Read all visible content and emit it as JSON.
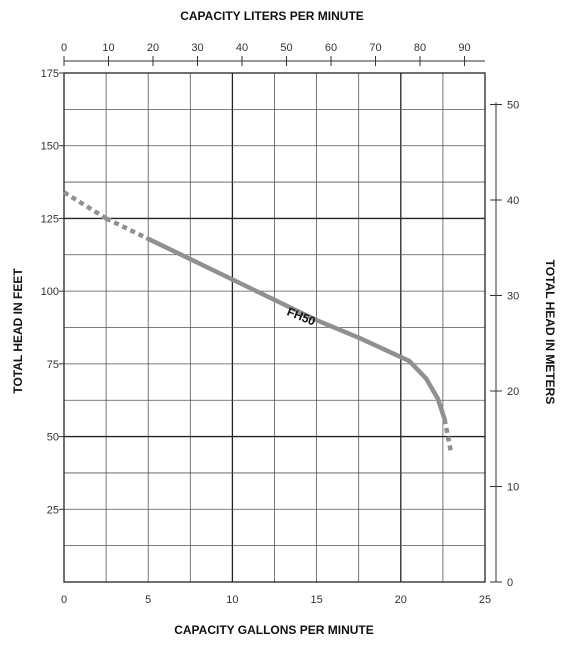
{
  "chart_data": {
    "type": "line",
    "title": "",
    "top_axis_title": "CAPACITY LITERS PER MINUTE",
    "bottom_axis_title": "CAPACITY GALLONS PER MINUTE",
    "left_axis_title": "TOTAL HEAD IN FEET",
    "right_axis_title": "TOTAL HEAD IN METERS",
    "x_gpm": {
      "ticks": [
        "0",
        "5",
        "10",
        "15",
        "20",
        "25"
      ],
      "range": [
        0,
        25
      ]
    },
    "x_lpm": {
      "ticks": [
        "0",
        "10",
        "20",
        "30",
        "40",
        "50",
        "60",
        "70",
        "80",
        "90"
      ],
      "range": [
        0,
        94.6
      ]
    },
    "y_feet": {
      "ticks": [
        "25",
        "50",
        "75",
        "100",
        "125",
        "150",
        "175"
      ],
      "range": [
        0,
        175
      ]
    },
    "y_meters": {
      "ticks": [
        "0",
        "10",
        "20",
        "30",
        "40",
        "50"
      ],
      "range": [
        0,
        53.3
      ]
    },
    "grid": true,
    "series": [
      {
        "name": "FH50",
        "x": [
          0,
          2.5,
          5,
          7.5,
          10,
          12.5,
          15,
          17.5,
          19,
          20.5,
          21.5,
          22.2,
          22.6,
          22.8,
          23.0
        ],
        "y": [
          134,
          125,
          118,
          111,
          104,
          97,
          90,
          84,
          80,
          76,
          70,
          63,
          56,
          50,
          44
        ],
        "dashed_x_ranges": [
          [
            0,
            5
          ],
          [
            22.6,
            23.0
          ]
        ]
      }
    ]
  }
}
